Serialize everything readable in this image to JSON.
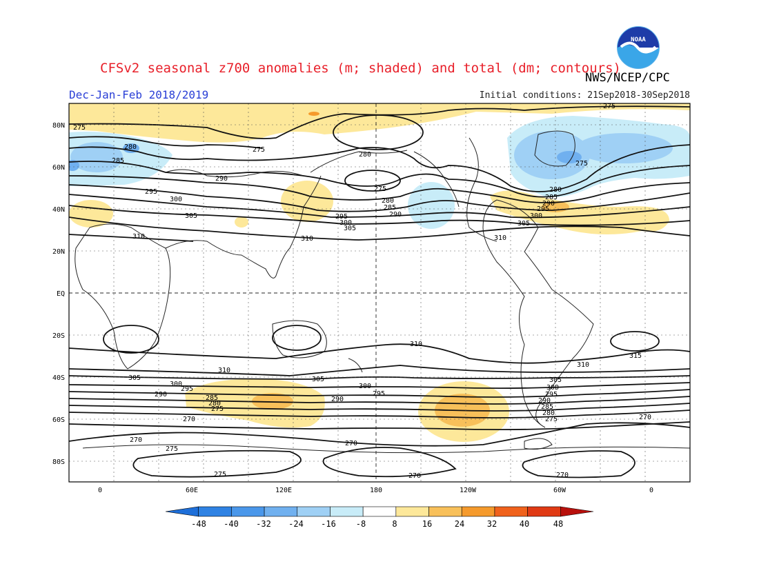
{
  "header": {
    "title": "CFSv2 seasonal z700 anomalies (m; shaded) and total (dm; contours)",
    "period": "Dec-Jan-Feb 2018/2019",
    "agency": "NWS/NCEP/CPC",
    "initial_conditions": "Initial conditions: 21Sep2018-30Sep2018",
    "logo_text": "NOAA"
  },
  "map": {
    "lat_labels": [
      "80N",
      "60N",
      "40N",
      "20N",
      "EQ",
      "20S",
      "40S",
      "60S",
      "80S"
    ],
    "lon_labels": [
      "0",
      "60E",
      "120E",
      "180",
      "120W",
      "60W",
      "0"
    ],
    "contour_labels": [
      "275",
      "280",
      "285",
      "290",
      "295",
      "300",
      "305",
      "310",
      "315",
      "270"
    ]
  },
  "colorbar": {
    "ticks": [
      "-48",
      "-40",
      "-32",
      "-24",
      "-16",
      "-8",
      "8",
      "16",
      "24",
      "32",
      "40",
      "48"
    ],
    "colors": [
      "#1e6fd9",
      "#2f82e3",
      "#4a97ea",
      "#70b0ef",
      "#9fd0f5",
      "#c8ecf8",
      "#ffffff",
      "#fde89a",
      "#f8c05a",
      "#f59a2c",
      "#f0621c",
      "#e03a14",
      "#b8100c"
    ]
  },
  "chart_data": {
    "type": "heatmap",
    "title": "CFSv2 seasonal z700 anomalies (m; shaded) and total (dm; contours)",
    "subtitle": "Dec-Jan-Feb 2018/2019",
    "colorbar_ticks": [
      -48,
      -40,
      -32,
      -24,
      -16,
      -8,
      8,
      16,
      24,
      32,
      40,
      48
    ],
    "contour_levels_dm": [
      270,
      275,
      280,
      285,
      290,
      295,
      300,
      305,
      310,
      315
    ],
    "anomaly_features": [
      {
        "region": "Arctic / north of Europe",
        "sign": "positive",
        "range": "8 to 16"
      },
      {
        "region": "Greenland / northern Atlantic",
        "sign": "negative",
        "range": "-8 to -24"
      },
      {
        "region": "Japan / NW Pacific",
        "sign": "positive",
        "range": "8 to 16"
      },
      {
        "region": "NE Pacific / Gulf of Alaska",
        "sign": "negative",
        "range": "-8 to -16"
      },
      {
        "region": "Central North Atlantic",
        "sign": "positive",
        "range": "8 to 24"
      },
      {
        "region": "Southern Indian Ocean 50S",
        "sign": "positive",
        "range": "8 to 24"
      },
      {
        "region": "South Pacific 55S 130W",
        "sign": "positive",
        "range": "8 to 24"
      }
    ]
  }
}
